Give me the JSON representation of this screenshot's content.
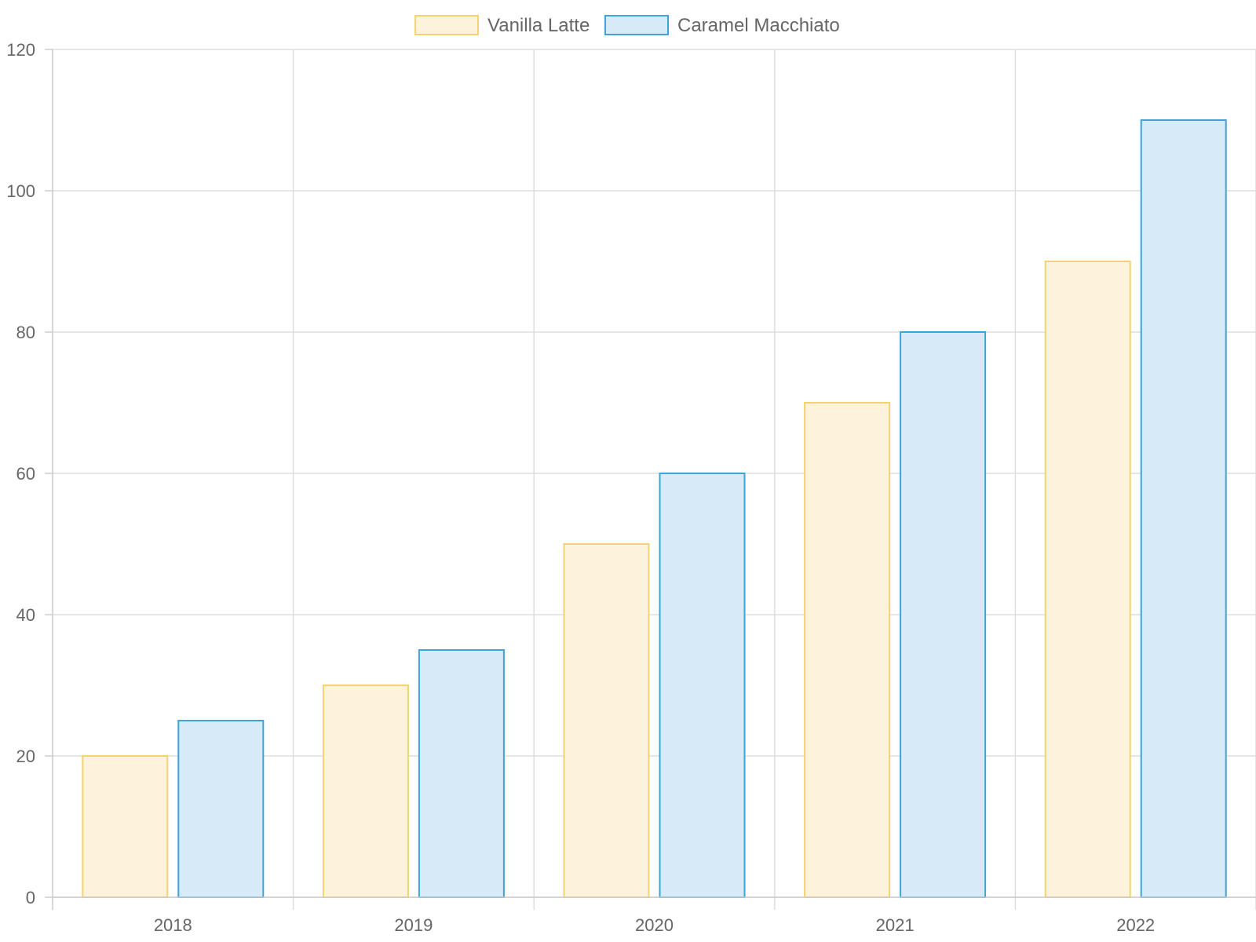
{
  "chart_data": {
    "type": "bar",
    "categories": [
      "2018",
      "2019",
      "2020",
      "2021",
      "2022"
    ],
    "series": [
      {
        "name": "Vanilla Latte",
        "values": [
          20,
          30,
          50,
          70,
          90
        ],
        "fill": "#fdf3dc",
        "stroke": "#f3d36f"
      },
      {
        "name": "Caramel Macchiato",
        "values": [
          25,
          35,
          60,
          80,
          110
        ],
        "fill": "#d6eaf8",
        "stroke": "#3fa3d6"
      }
    ],
    "ylim": [
      0,
      120
    ],
    "yticks": [
      "0",
      "20",
      "40",
      "60",
      "80",
      "100",
      "120"
    ],
    "grid": true,
    "legend_position": "top-center",
    "title": "",
    "xlabel": "",
    "ylabel": ""
  }
}
